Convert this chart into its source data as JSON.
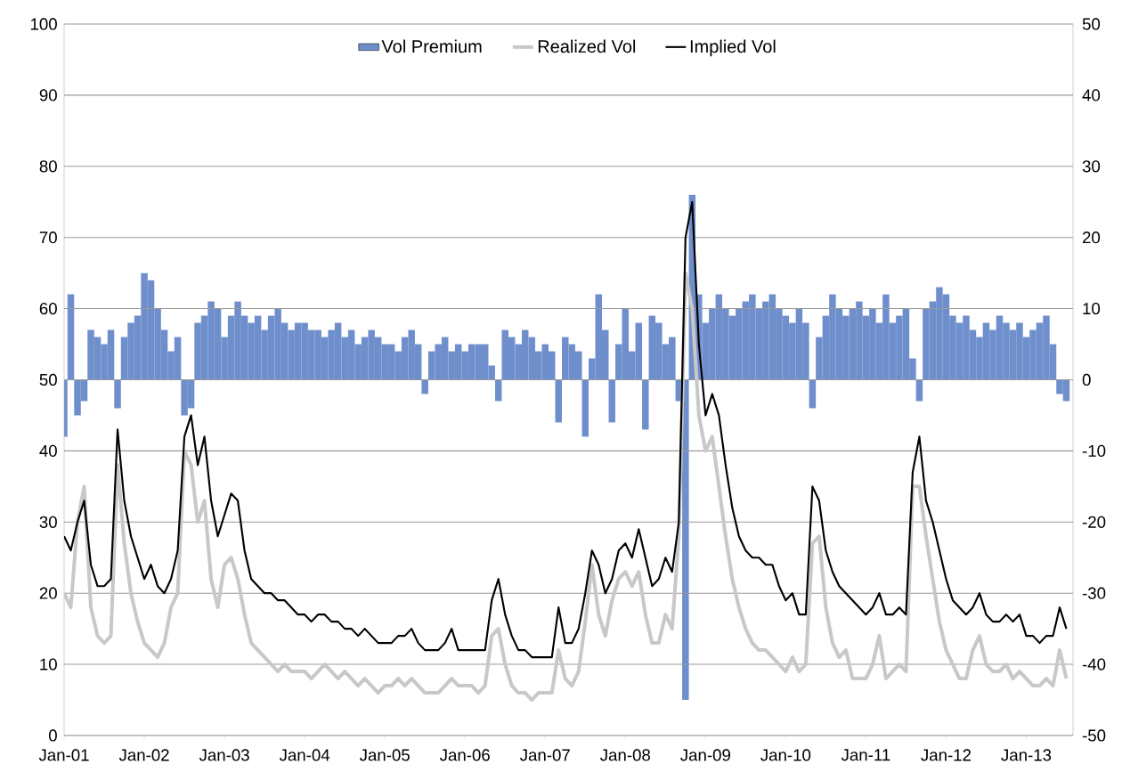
{
  "chart_data": {
    "type": "line",
    "x": [
      "2001-01",
      "2001-02",
      "2001-03",
      "2001-04",
      "2001-05",
      "2001-06",
      "2001-07",
      "2001-08",
      "2001-09",
      "2001-10",
      "2001-11",
      "2001-12",
      "2002-01",
      "2002-02",
      "2002-03",
      "2002-04",
      "2002-05",
      "2002-06",
      "2002-07",
      "2002-08",
      "2002-09",
      "2002-10",
      "2002-11",
      "2002-12",
      "2003-01",
      "2003-02",
      "2003-03",
      "2003-04",
      "2003-05",
      "2003-06",
      "2003-07",
      "2003-08",
      "2003-09",
      "2003-10",
      "2003-11",
      "2003-12",
      "2004-01",
      "2004-02",
      "2004-03",
      "2004-04",
      "2004-05",
      "2004-06",
      "2004-07",
      "2004-08",
      "2004-09",
      "2004-10",
      "2004-11",
      "2004-12",
      "2005-01",
      "2005-02",
      "2005-03",
      "2005-04",
      "2005-05",
      "2005-06",
      "2005-07",
      "2005-08",
      "2005-09",
      "2005-10",
      "2005-11",
      "2005-12",
      "2006-01",
      "2006-02",
      "2006-03",
      "2006-04",
      "2006-05",
      "2006-06",
      "2006-07",
      "2006-08",
      "2006-09",
      "2006-10",
      "2006-11",
      "2006-12",
      "2007-01",
      "2007-02",
      "2007-03",
      "2007-04",
      "2007-05",
      "2007-06",
      "2007-07",
      "2007-08",
      "2007-09",
      "2007-10",
      "2007-11",
      "2007-12",
      "2008-01",
      "2008-02",
      "2008-03",
      "2008-04",
      "2008-05",
      "2008-06",
      "2008-07",
      "2008-08",
      "2008-09",
      "2008-10",
      "2008-11",
      "2008-12",
      "2009-01",
      "2009-02",
      "2009-03",
      "2009-04",
      "2009-05",
      "2009-06",
      "2009-07",
      "2009-08",
      "2009-09",
      "2009-10",
      "2009-11",
      "2009-12",
      "2010-01",
      "2010-02",
      "2010-03",
      "2010-04",
      "2010-05",
      "2010-06",
      "2010-07",
      "2010-08",
      "2010-09",
      "2010-10",
      "2010-11",
      "2010-12",
      "2011-01",
      "2011-02",
      "2011-03",
      "2011-04",
      "2011-05",
      "2011-06",
      "2011-07",
      "2011-08",
      "2011-09",
      "2011-10",
      "2011-11",
      "2011-12",
      "2012-01",
      "2012-02",
      "2012-03",
      "2012-04",
      "2012-05",
      "2012-06",
      "2012-07",
      "2012-08",
      "2012-09",
      "2012-10",
      "2012-11",
      "2012-12",
      "2013-01",
      "2013-02",
      "2013-03",
      "2013-04",
      "2013-05",
      "2013-06",
      "2013-07"
    ],
    "series": [
      {
        "name": "Vol Premium",
        "type": "bar",
        "axis": "y2",
        "color": "#6f8fcc",
        "values": [
          -8,
          12,
          -5,
          -3,
          7,
          6,
          5,
          7,
          -4,
          6,
          8,
          9,
          15,
          14,
          10,
          7,
          4,
          6,
          -5,
          -4,
          8,
          9,
          11,
          10,
          6,
          9,
          11,
          9,
          8,
          9,
          7,
          9,
          10,
          8,
          7,
          8,
          8,
          7,
          7,
          6,
          7,
          8,
          6,
          7,
          5,
          6,
          7,
          6,
          5,
          5,
          4,
          6,
          7,
          5,
          -2,
          4,
          5,
          6,
          4,
          5,
          4,
          5,
          5,
          5,
          2,
          -3,
          7,
          6,
          5,
          7,
          6,
          4,
          5,
          4,
          -6,
          6,
          5,
          4,
          -8,
          3,
          12,
          7,
          -6,
          5,
          10,
          4,
          8,
          -7,
          9,
          8,
          5,
          6,
          -3,
          -45,
          26,
          12,
          8,
          10,
          12,
          10,
          9,
          10,
          11,
          12,
          10,
          11,
          12,
          10,
          9,
          8,
          10,
          8,
          -4,
          6,
          9,
          12,
          10,
          9,
          10,
          11,
          9,
          10,
          8,
          12,
          8,
          9,
          10,
          3,
          -3,
          10,
          11,
          13,
          12,
          9,
          8,
          9,
          7,
          6,
          8,
          7,
          9,
          8,
          7,
          8,
          6,
          7,
          8,
          9,
          5,
          -2,
          -3
        ]
      },
      {
        "name": "Realized Vol",
        "color": "#c8c8c8",
        "values": [
          20,
          18,
          30,
          35,
          18,
          14,
          13,
          14,
          38,
          27,
          20,
          16,
          13,
          12,
          11,
          13,
          18,
          20,
          40,
          38,
          30,
          33,
          22,
          18,
          24,
          25,
          22,
          17,
          13,
          12,
          11,
          10,
          9,
          10,
          9,
          9,
          9,
          8,
          9,
          10,
          9,
          8,
          9,
          8,
          7,
          8,
          7,
          6,
          7,
          7,
          8,
          7,
          8,
          7,
          6,
          6,
          6,
          7,
          8,
          7,
          7,
          7,
          6,
          7,
          14,
          15,
          10,
          7,
          6,
          6,
          5,
          6,
          6,
          6,
          12,
          8,
          7,
          9,
          16,
          24,
          17,
          14,
          19,
          22,
          23,
          21,
          23,
          17,
          13,
          13,
          17,
          15,
          28,
          65,
          60,
          45,
          40,
          42,
          35,
          28,
          22,
          18,
          15,
          13,
          12,
          12,
          11,
          10,
          9,
          11,
          9,
          10,
          27,
          28,
          18,
          13,
          11,
          12,
          8,
          8,
          8,
          10,
          14,
          8,
          9,
          10,
          9,
          35,
          35,
          28,
          22,
          16,
          12,
          10,
          8,
          8,
          12,
          14,
          10,
          9,
          9,
          10,
          8,
          9,
          8,
          7,
          7,
          8,
          7,
          12,
          8
        ]
      },
      {
        "name": "Implied Vol",
        "color": "#000000",
        "values": [
          28,
          26,
          30,
          33,
          24,
          21,
          21,
          22,
          43,
          33,
          28,
          25,
          22,
          24,
          21,
          20,
          22,
          26,
          42,
          45,
          38,
          42,
          33,
          28,
          31,
          34,
          33,
          26,
          22,
          21,
          20,
          20,
          19,
          19,
          18,
          17,
          17,
          16,
          17,
          17,
          16,
          16,
          15,
          15,
          14,
          15,
          14,
          13,
          13,
          13,
          14,
          14,
          15,
          13,
          12,
          12,
          12,
          13,
          15,
          12,
          12,
          12,
          12,
          12,
          19,
          22,
          17,
          14,
          12,
          12,
          11,
          11,
          11,
          11,
          18,
          13,
          13,
          15,
          20,
          26,
          24,
          20,
          22,
          26,
          27,
          25,
          29,
          25,
          21,
          22,
          25,
          23,
          30,
          70,
          75,
          55,
          45,
          48,
          45,
          38,
          32,
          28,
          26,
          25,
          25,
          24,
          24,
          21,
          19,
          20,
          17,
          17,
          35,
          33,
          26,
          23,
          21,
          20,
          19,
          18,
          17,
          18,
          20,
          17,
          17,
          18,
          17,
          37,
          42,
          33,
          30,
          26,
          22,
          19,
          18,
          17,
          18,
          20,
          17,
          16,
          16,
          17,
          16,
          17,
          14,
          14,
          13,
          14,
          14,
          18,
          15
        ]
      }
    ],
    "xlim": [
      "2001-01",
      "2013-08"
    ],
    "xticks": [
      {
        "value": "2001-01",
        "label": "Jan-01"
      },
      {
        "value": "2002-01",
        "label": "Jan-02"
      },
      {
        "value": "2003-01",
        "label": "Jan-03"
      },
      {
        "value": "2004-01",
        "label": "Jan-04"
      },
      {
        "value": "2005-01",
        "label": "Jan-05"
      },
      {
        "value": "2006-01",
        "label": "Jan-06"
      },
      {
        "value": "2007-01",
        "label": "Jan-07"
      },
      {
        "value": "2008-01",
        "label": "Jan-08"
      },
      {
        "value": "2009-01",
        "label": "Jan-09"
      },
      {
        "value": "2010-01",
        "label": "Jan-10"
      },
      {
        "value": "2011-01",
        "label": "Jan-11"
      },
      {
        "value": "2012-01",
        "label": "Jan-12"
      },
      {
        "value": "2013-01",
        "label": "Jan-13"
      }
    ],
    "ylim": [
      0,
      100
    ],
    "yticks": [
      0,
      10,
      20,
      30,
      40,
      50,
      60,
      70,
      80,
      90,
      100
    ],
    "y2lim": [
      -50,
      50
    ],
    "y2ticks": [
      -50,
      -40,
      -30,
      -20,
      -10,
      0,
      10,
      20,
      30,
      40,
      50
    ],
    "grid": "y",
    "legend": "top"
  }
}
